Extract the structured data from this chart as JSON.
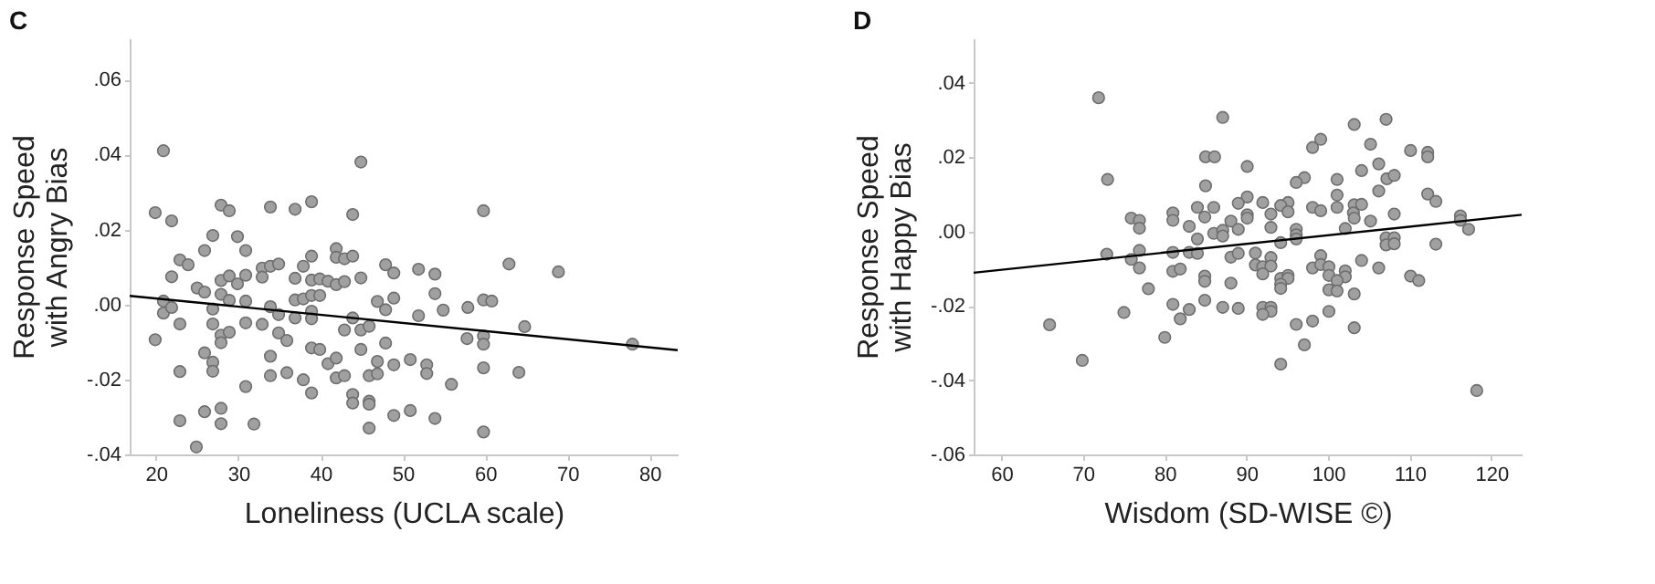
{
  "chart_data": [
    {
      "type": "scatter",
      "title": "C",
      "xlabel": "Loneliness (UCLA scale)",
      "ylabel": "Response Speed\nwith Angry Bias",
      "xlim": [
        16.8,
        83.4
      ],
      "xticks": [
        20,
        30,
        40,
        50,
        60,
        70,
        80
      ],
      "ylim": [
        -0.04,
        0.071
      ],
      "yticks": [
        {
          "value": 0.06,
          "label": ".06"
        },
        {
          "value": 0.04,
          "label": ".04"
        },
        {
          "value": 0.02,
          "label": ".02"
        },
        {
          "value": 0,
          "label": ".00"
        },
        {
          "value": -0.02,
          "label": "-.02"
        },
        {
          "value": -0.04,
          "label": "-.04"
        }
      ],
      "grid": false,
      "series": [
        {
          "marker": "circle",
          "color": "#a0a0a0",
          "x": [
            20.9,
            19.9,
            21.9,
            44.9,
            27.9,
            28.9,
            33.9,
            36.9,
            38.9,
            43.9,
            59.8,
            26.9,
            29.9,
            25.9,
            30.9,
            22.9,
            23.9,
            21.9,
            27.9,
            28.9,
            29.9,
            30.9,
            32.9,
            33.9,
            34.9,
            32.9,
            36.9,
            37.9,
            38.9,
            38.9,
            39.9,
            41.9,
            41.9,
            42.9,
            43.9,
            40.9,
            41.9,
            42.9,
            44.9,
            47.9,
            48.9,
            51.9,
            53.9,
            62.9,
            68.9,
            25,
            25.9,
            27.9,
            28.9,
            30.9,
            20.9,
            20.9,
            21.9,
            26.9,
            33.9,
            34.9,
            36.9,
            37.9,
            38.9,
            39.9,
            38.9,
            38.9,
            36.9,
            46.9,
            47.9,
            48.9,
            51.9,
            53.9,
            54.9,
            57.9,
            59.8,
            60.8,
            43.9,
            19.9,
            22.9,
            26.9,
            27.9,
            28.9,
            27.9,
            30.9,
            32.9,
            34.9,
            35.9,
            42.9,
            44.9,
            45.9,
            47.9,
            44.9,
            38.9,
            39.9,
            57.8,
            59.8,
            59.8,
            64.8,
            77.9,
            25.9,
            26.9,
            26.9,
            22.9,
            33.9,
            33.9,
            35.9,
            37.9,
            38.9,
            40.9,
            41.9,
            41.9,
            42.9,
            45.9,
            46.9,
            46.9,
            48.9,
            50.9,
            52.9,
            52.9,
            59.8,
            64.1,
            55.9,
            30.9,
            43.9,
            43.9,
            45.9,
            45.9,
            25.9,
            27.9,
            22.9,
            27.9,
            31.9,
            48.9,
            50.9,
            53.9,
            45.9,
            59.8,
            24.9
          ],
          "values": [
            0.041,
            0.0245,
            0.0223,
            0.038,
            0.0265,
            0.025,
            0.026,
            0.0254,
            0.0274,
            0.024,
            0.025,
            0.0184,
            0.0181,
            0.0144,
            0.0144,
            0.0119,
            0.0106,
            0.0074,
            0.0064,
            0.0076,
            0.0055,
            0.0078,
            0.0097,
            0.0102,
            0.0108,
            0.0073,
            0.007,
            0.0102,
            0.0129,
            0.0065,
            0.0068,
            0.0149,
            0.0126,
            0.0122,
            0.0129,
            0.0062,
            0.0053,
            0.0061,
            0.0071,
            0.0106,
            0.0084,
            0.0094,
            0.0081,
            0.0108,
            0.0087,
            0.0044,
            0.0033,
            0.0027,
            0.0011,
            0.0009,
            0.0009,
            -0.0023,
            -0.0008,
            -0.0012,
            -0.0006,
            -0.0027,
            0.0012,
            0.0015,
            0.0024,
            0.0024,
            -0.0018,
            -0.0038,
            -0.0036,
            0.0008,
            -0.0014,
            0.0017,
            -0.003,
            0.0029,
            -0.0015,
            -0.0008,
            0.0012,
            0.0009,
            -0.0036,
            -0.0094,
            -0.0052,
            -0.0052,
            -0.0082,
            -0.0074,
            -0.0102,
            -0.0049,
            -0.0053,
            -0.0076,
            -0.0096,
            -0.0068,
            -0.0068,
            -0.0058,
            -0.0103,
            -0.012,
            -0.0116,
            -0.012,
            -0.0091,
            -0.0084,
            -0.0106,
            -0.0059,
            -0.0106,
            -0.0129,
            -0.0154,
            -0.0178,
            -0.0179,
            -0.0138,
            -0.019,
            -0.0182,
            -0.0201,
            -0.0236,
            -0.0158,
            -0.0143,
            -0.0196,
            -0.019,
            -0.019,
            -0.0185,
            -0.0152,
            -0.0161,
            -0.0147,
            -0.0161,
            -0.0184,
            -0.0169,
            -0.0181,
            -0.0213,
            -0.0219,
            -0.024,
            -0.0263,
            -0.0258,
            -0.0266,
            -0.0286,
            -0.0277,
            -0.031,
            -0.0318,
            -0.0319,
            -0.0296,
            -0.0283,
            -0.0304,
            -0.033,
            -0.034,
            -0.038
          ]
        },
        {
          "type": "line",
          "color": "#000000",
          "x": [
            16.8,
            83.4
          ],
          "values": [
            0.0023,
            -0.0122
          ]
        }
      ]
    },
    {
      "type": "scatter",
      "title": "D",
      "xlabel": "Wisdom (SD-WISE ©)",
      "ylabel": "Response Speed\nwith Happy Bias",
      "xlim": [
        56.6,
        123.7
      ],
      "xticks": [
        60,
        70,
        80,
        90,
        100,
        110,
        120
      ],
      "ylim": [
        -0.06,
        0.052
      ],
      "yticks": [
        {
          "value": 0.04,
          "label": ".04"
        },
        {
          "value": 0.02,
          "label": ".02"
        },
        {
          "value": 0,
          "label": ".00"
        },
        {
          "value": -0.02,
          "label": "-.02"
        },
        {
          "value": -0.04,
          "label": "-.04"
        },
        {
          "value": -0.06,
          "label": "-.06"
        }
      ],
      "grid": false,
      "series": [
        {
          "marker": "circle",
          "color": "#a0a0a0",
          "x": [
            71.9,
            73,
            87.1,
            85,
            86.1,
            90.1,
            103.2,
            107.1,
            99.1,
            98.1,
            105.2,
            110.1,
            112.2,
            112.2,
            106.2,
            104.1,
            101.1,
            97.1,
            96.1,
            107.2,
            108.1,
            85,
            106.2,
            112.2,
            113.2,
            101.1,
            90.1,
            89,
            92,
            95.1,
            94.2,
            84,
            86,
            98.1,
            99.1,
            101.1,
            103.2,
            104.1,
            103.1,
            108.1,
            81,
            81,
            84.9,
            88.1,
            90.1,
            90.1,
            93,
            95.1,
            103.2,
            105.2,
            116.2,
            116.2,
            117.2,
            75.9,
            76.9,
            76.9,
            83,
            86,
            87.1,
            87.1,
            89,
            93,
            96.1,
            96.1,
            96.1,
            102.1,
            84,
            94.2,
            107.1,
            108.1,
            107.1,
            108.1,
            113.2,
            72.9,
            76.9,
            75.9,
            76.9,
            81,
            83,
            84,
            88.1,
            89,
            91.1,
            91.1,
            93,
            92,
            93,
            92,
            99.1,
            98.1,
            99.1,
            100.1,
            100.1,
            102.1,
            102.1,
            104.1,
            106.2,
            81,
            81.9,
            84.9,
            84.9,
            88.1,
            94.2,
            95.1,
            95.1,
            94.2,
            94.2,
            101.1,
            100.1,
            101.1,
            110.1,
            111.1,
            78,
            103.2,
            84.9,
            87.1,
            89,
            92,
            93,
            93,
            92,
            75,
            83,
            81,
            81.9,
            100.1,
            96.1,
            98.1,
            103.2,
            65.9,
            80,
            97.1,
            69.9,
            94.2,
            118.2
          ],
          "values": [
            0.036,
            0.014,
            0.0307,
            0.0201,
            0.0201,
            0.0175,
            0.0288,
            0.0302,
            0.0248,
            0.0226,
            0.0235,
            0.0218,
            0.0213,
            0.0201,
            0.0182,
            0.0164,
            0.014,
            0.0145,
            0.0132,
            0.0142,
            0.0151,
            0.0123,
            0.0109,
            0.0101,
            0.0081,
            0.0098,
            0.0093,
            0.0076,
            0.0078,
            0.0078,
            0.007,
            0.0065,
            0.0065,
            0.0065,
            0.0056,
            0.0065,
            0.0072,
            0.0073,
            0.005,
            0.0047,
            0.005,
            0.003,
            0.0039,
            0.0028,
            0.0045,
            0.0036,
            0.0047,
            0.0053,
            0.0036,
            0.0028,
            0.0042,
            0.003,
            0.0006,
            0.0036,
            0.003,
            0.0009,
            0.0014,
            -0.0005,
            0.0003,
            -0.0012,
            0.0006,
            0.0011,
            0.0006,
            -0.0009,
            -0.002,
            0.0008,
            -0.002,
            -0.003,
            -0.0017,
            -0.0017,
            -0.0036,
            -0.0033,
            -0.0034,
            -0.0061,
            -0.0051,
            -0.0075,
            -0.0098,
            -0.0056,
            -0.0056,
            -0.0059,
            -0.0069,
            -0.0059,
            -0.0058,
            -0.009,
            -0.007,
            -0.0095,
            -0.0093,
            -0.0114,
            -0.0065,
            -0.0098,
            -0.0089,
            -0.0095,
            -0.0118,
            -0.0106,
            -0.0122,
            -0.0078,
            -0.0098,
            -0.0107,
            -0.0101,
            -0.012,
            -0.0134,
            -0.0139,
            -0.0126,
            -0.0118,
            -0.0126,
            -0.0142,
            -0.0153,
            -0.0132,
            -0.0157,
            -0.016,
            -0.012,
            -0.0132,
            -0.0154,
            -0.0168,
            -0.0185,
            -0.0204,
            -0.0207,
            -0.0204,
            -0.0204,
            -0.0215,
            -0.0223,
            -0.0218,
            -0.021,
            -0.0196,
            -0.0235,
            -0.0215,
            -0.025,
            -0.0241,
            -0.0259,
            -0.0251,
            -0.0285,
            -0.0305,
            -0.0347,
            -0.0357,
            -0.0428
          ]
        },
        {
          "type": "line",
          "color": "#000000",
          "x": [
            56.6,
            123.7
          ],
          "values": [
            -0.0111,
            0.0045
          ]
        }
      ]
    }
  ]
}
